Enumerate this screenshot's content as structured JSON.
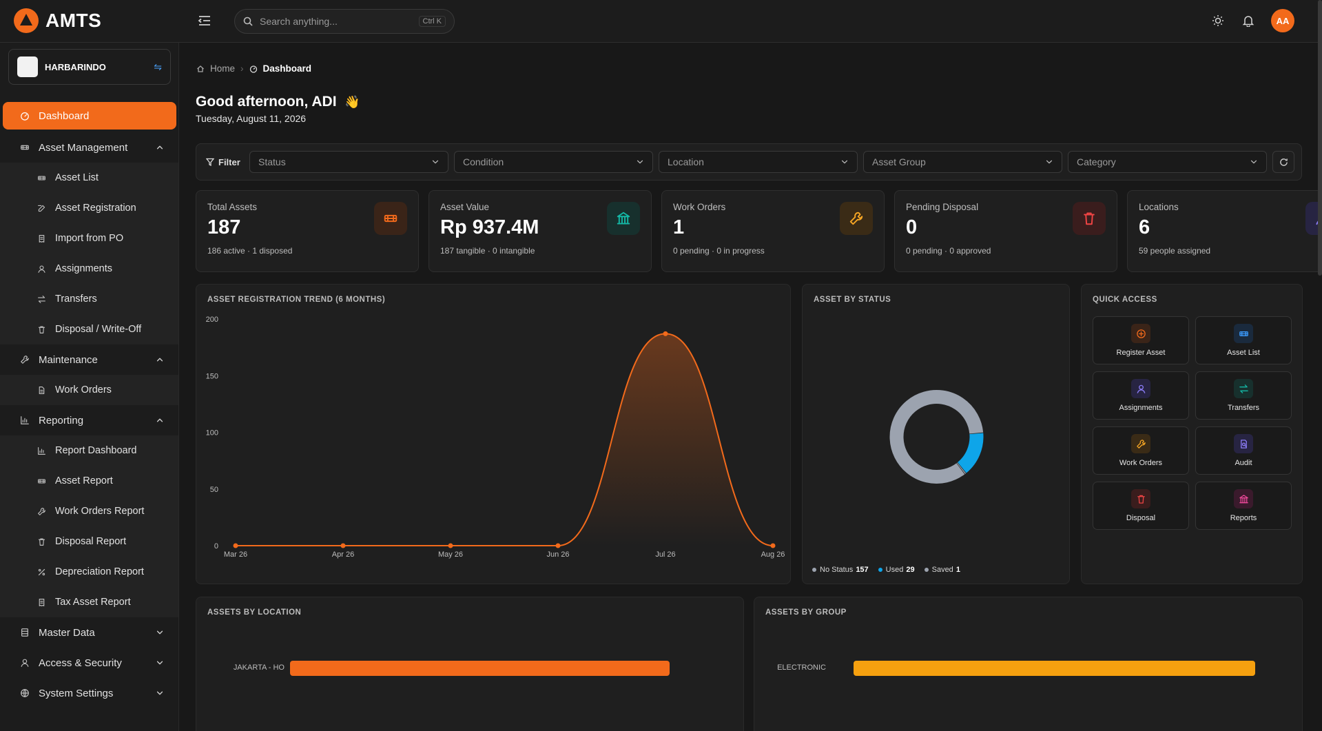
{
  "app": {
    "name": "AMTS"
  },
  "search": {
    "placeholder": "Search anything...",
    "shortcut": "Ctrl K"
  },
  "user": {
    "initials": "AA"
  },
  "org": {
    "name": "HARBARINDO"
  },
  "sidebar": {
    "items": [
      {
        "label": "Dashboard",
        "icon": "dashboard-icon",
        "active": true
      },
      {
        "label": "Asset Management",
        "icon": "asset-icon",
        "expanded": true,
        "children": [
          {
            "label": "Asset List",
            "icon": "asset-icon"
          },
          {
            "label": "Asset Registration",
            "icon": "edit-icon"
          },
          {
            "label": "Import from PO",
            "icon": "receipt-icon"
          },
          {
            "label": "Assignments",
            "icon": "user-icon"
          },
          {
            "label": "Transfers",
            "icon": "transfer-icon"
          },
          {
            "label": "Disposal / Write-Off",
            "icon": "trash-icon"
          }
        ]
      },
      {
        "label": "Maintenance",
        "icon": "wrench-icon",
        "expanded": true,
        "children": [
          {
            "label": "Work Orders",
            "icon": "document-icon"
          }
        ]
      },
      {
        "label": "Reporting",
        "icon": "chart-icon",
        "expanded": true,
        "children": [
          {
            "label": "Report Dashboard",
            "icon": "chart-icon"
          },
          {
            "label": "Asset Report",
            "icon": "asset-icon"
          },
          {
            "label": "Work Orders Report",
            "icon": "wrench-icon"
          },
          {
            "label": "Disposal Report",
            "icon": "trash-icon"
          },
          {
            "label": "Depreciation Report",
            "icon": "percent-icon"
          },
          {
            "label": "Tax Asset Report",
            "icon": "receipt-icon"
          }
        ]
      },
      {
        "label": "Master Data",
        "icon": "database-icon",
        "expanded": false
      },
      {
        "label": "Access & Security",
        "icon": "user-icon",
        "expanded": false
      },
      {
        "label": "System Settings",
        "icon": "globe-icon",
        "expanded": false
      }
    ]
  },
  "breadcrumb": {
    "home": "Home",
    "current": "Dashboard"
  },
  "greeting": {
    "text": "Good afternoon, ADI",
    "emoji": "👋",
    "date": "Tuesday, August 11, 2026"
  },
  "filters": {
    "label": "Filter",
    "selects": [
      "Status",
      "Condition",
      "Location",
      "Asset Group",
      "Category"
    ]
  },
  "kpis": [
    {
      "label": "Total Assets",
      "value": "187",
      "sub": "186 active · 1 disposed",
      "icon": "asset-icon",
      "color": "#f26a1b",
      "bg": "#3a2418"
    },
    {
      "label": "Asset Value",
      "value": "Rp 937.4M",
      "sub": "187 tangible · 0 intangible",
      "icon": "bank-icon",
      "color": "#14b8a6",
      "bg": "#17302d"
    },
    {
      "label": "Work Orders",
      "value": "1",
      "sub": "0 pending · 0 in progress",
      "icon": "wrench-icon",
      "color": "#f5a524",
      "bg": "#3a2b16"
    },
    {
      "label": "Pending Disposal",
      "value": "0",
      "sub": "0 pending · 0 approved",
      "icon": "trash-icon",
      "color": "#ef4444",
      "bg": "#3a1d1d"
    },
    {
      "label": "Locations",
      "value": "6",
      "sub": "59 people assigned",
      "icon": "user-icon",
      "color": "#8b7cf6",
      "bg": "#272442"
    }
  ],
  "trend": {
    "title": "ASSET REGISTRATION TREND (6 MONTHS)"
  },
  "status": {
    "title": "ASSET BY STATUS",
    "legend": [
      {
        "label": "No Status",
        "value": "157",
        "color": "#9ca3af"
      },
      {
        "label": "Used",
        "value": "29",
        "color": "#0ea5e9"
      },
      {
        "label": "Saved",
        "value": "1",
        "color": "#9ca3af"
      }
    ]
  },
  "quick_access": {
    "title": "QUICK ACCESS",
    "items": [
      {
        "label": "Register Asset",
        "icon": "plus-circle-icon",
        "color": "#f26a1b",
        "bg": "#3a2418"
      },
      {
        "label": "Asset List",
        "icon": "asset-icon",
        "color": "#3b9cff",
        "bg": "#1a2a3d"
      },
      {
        "label": "Assignments",
        "icon": "user-icon",
        "color": "#8b7cf6",
        "bg": "#272442"
      },
      {
        "label": "Transfers",
        "icon": "transfer-icon",
        "color": "#14b8a6",
        "bg": "#17302d"
      },
      {
        "label": "Work Orders",
        "icon": "wrench-icon",
        "color": "#f5a524",
        "bg": "#3a2b16"
      },
      {
        "label": "Audit",
        "icon": "audit-icon",
        "color": "#8b7cf6",
        "bg": "#272442"
      },
      {
        "label": "Disposal",
        "icon": "trash-icon",
        "color": "#ef4444",
        "bg": "#3a1d1d"
      },
      {
        "label": "Reports",
        "icon": "bank-icon",
        "color": "#ec4899",
        "bg": "#3a1a2c"
      }
    ]
  },
  "location": {
    "title": "ASSETS BY LOCATION",
    "color": "#f26a1b"
  },
  "group": {
    "title": "ASSETS BY GROUP",
    "color": "#f5a00f"
  },
  "chart_data": [
    {
      "type": "area",
      "title": "ASSET REGISTRATION TREND (6 MONTHS)",
      "categories": [
        "Mar 26",
        "Apr 26",
        "May 26",
        "Jun 26",
        "Jul 26",
        "Aug 26"
      ],
      "values": [
        0,
        0,
        0,
        0,
        187,
        0
      ],
      "yticks": [
        0,
        50,
        100,
        150,
        200
      ],
      "ylim": [
        0,
        200
      ],
      "color": "#f26a1b"
    },
    {
      "type": "pie",
      "title": "ASSET BY STATUS",
      "labels": [
        "No Status",
        "Used",
        "Saved"
      ],
      "values": [
        157,
        29,
        1
      ],
      "colors": [
        "#9ca3af",
        "#0ea5e9",
        "#9ca3af"
      ]
    },
    {
      "type": "bar",
      "orientation": "horizontal",
      "title": "ASSETS BY LOCATION",
      "categories": [
        "JAKARTA - HO"
      ],
      "values": [
        1
      ],
      "xlim": [
        0,
        1
      ]
    },
    {
      "type": "bar",
      "orientation": "horizontal",
      "title": "ASSETS BY GROUP",
      "categories": [
        "ELECTRONIC"
      ],
      "values": [
        1
      ],
      "xlim": [
        0,
        1
      ]
    }
  ]
}
